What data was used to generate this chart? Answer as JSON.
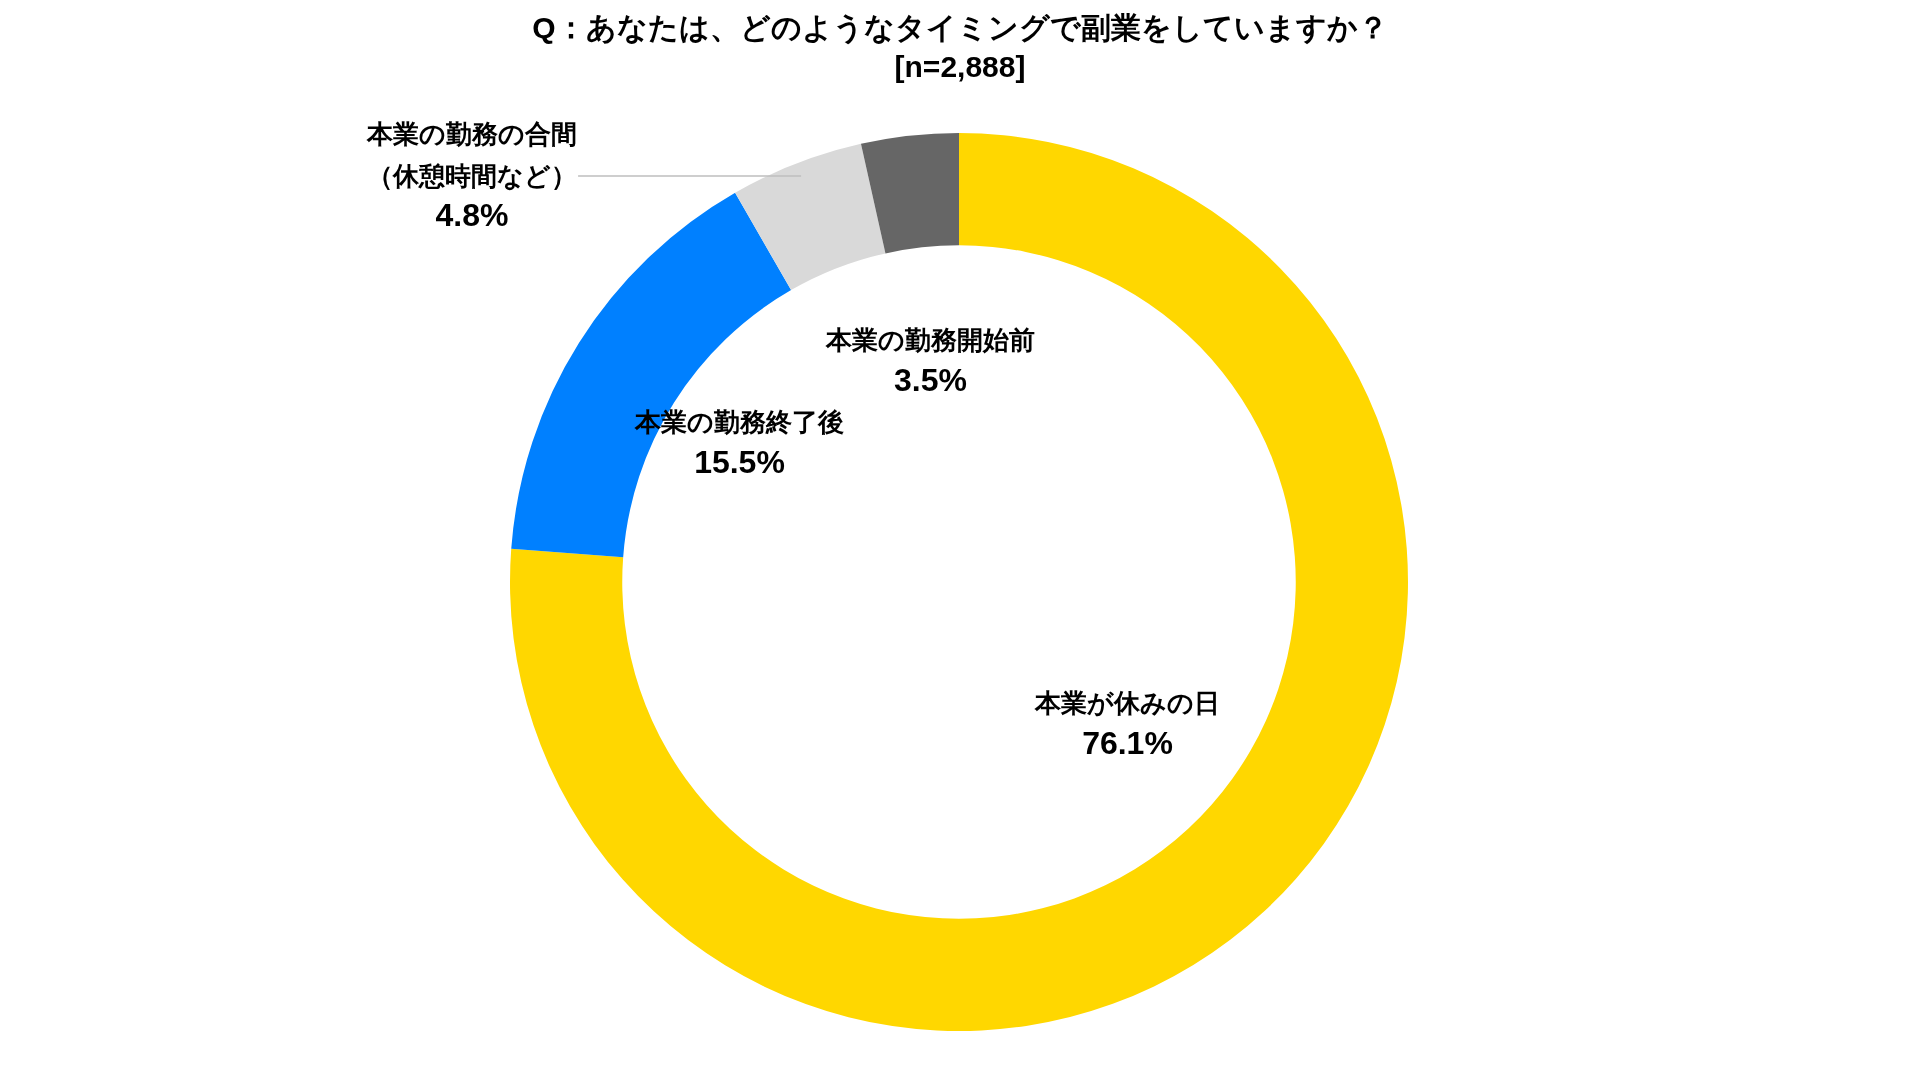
{
  "chart_data": {
    "type": "donut",
    "title": "Q：あなたは、どのようなタイミングで副業をしていますか？",
    "subtitle": "[n=2,888]",
    "categories": [
      "本業が休みの日",
      "本業の勤務終了後",
      "本業の勤務の合間（休憩時間など）",
      "本業の勤務開始前"
    ],
    "values": [
      76.1,
      15.5,
      4.8,
      3.5
    ],
    "value_labels": [
      "76.1%",
      "15.5%",
      "4.8%",
      "3.5%"
    ],
    "colors": [
      "#ffd700",
      "#0080ff",
      "#d9d9d9",
      "#666666"
    ],
    "legend": false
  }
}
